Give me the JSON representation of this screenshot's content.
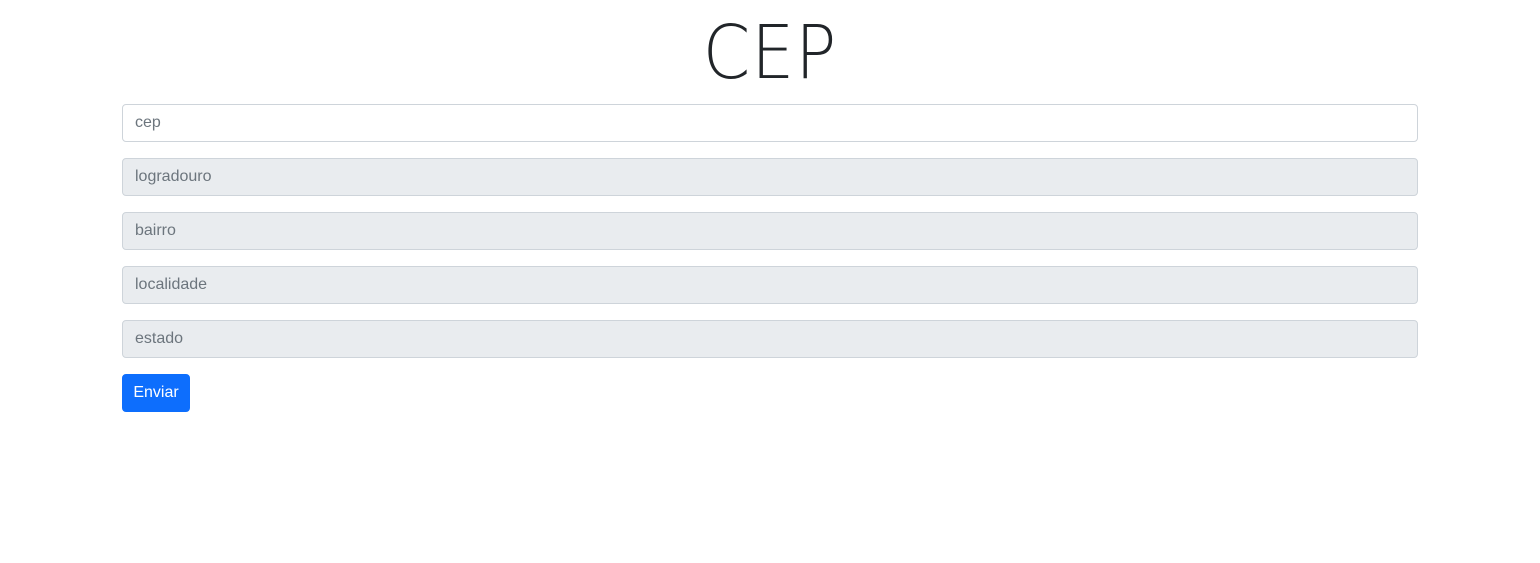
{
  "header": {
    "title": "CEP"
  },
  "form": {
    "fields": [
      {
        "placeholder": "cep",
        "value": ""
      },
      {
        "placeholder": "logradouro",
        "value": ""
      },
      {
        "placeholder": "bairro",
        "value": ""
      },
      {
        "placeholder": "localidade",
        "value": ""
      },
      {
        "placeholder": "estado",
        "value": ""
      }
    ],
    "submit_label": "Enviar"
  },
  "colors": {
    "primary": "#0d6efd",
    "readonly_background": "#e9ecef",
    "border": "#ced4da",
    "placeholder": "#6c757d"
  }
}
